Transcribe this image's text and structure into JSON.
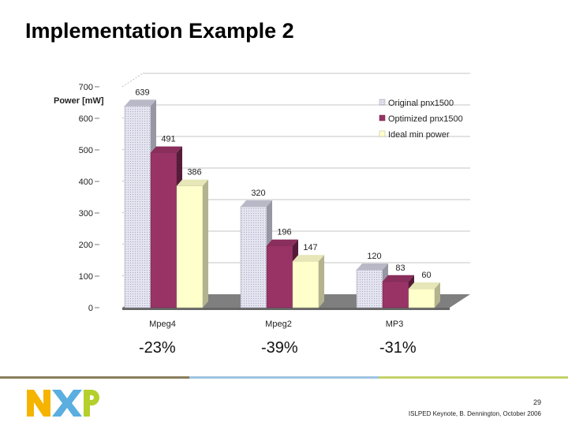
{
  "slide": {
    "title": "Implementation Example 2",
    "page_number": "29",
    "footer": "ISLPED Keynote, B. Dennington, October 2006"
  },
  "reductions": [
    "-23%",
    "-39%",
    "-31%"
  ],
  "logo": {
    "text": "NXP",
    "colors": {
      "n": "#f5b400",
      "x": "#5aaee0",
      "p": "#b5cf2c"
    }
  },
  "footer_colors": [
    "#8a7d5c",
    "#7fb3d9",
    "#b8c94a"
  ],
  "chart_data": {
    "type": "bar",
    "title": "",
    "xlabel": "",
    "ylabel": "Power [mW]",
    "ylim": [
      0,
      700
    ],
    "yticks": [
      "0",
      "100",
      "200",
      "300",
      "400",
      "500",
      "600",
      "700"
    ],
    "categories": [
      "Mpeg4",
      "Mpeg2",
      "MP3"
    ],
    "series": [
      {
        "name": "Original pnx1500",
        "values": [
          639,
          320,
          120
        ],
        "color": "#d8d8ea",
        "data_labels": [
          "639",
          "320",
          "120"
        ]
      },
      {
        "name": "Optimized pnx1500",
        "values": [
          491,
          196,
          83
        ],
        "color": "#993366",
        "data_labels": [
          "491",
          "196",
          "83"
        ]
      },
      {
        "name": "Ideal min power",
        "values": [
          386,
          147,
          60
        ],
        "color": "#ffffcc",
        "data_labels": [
          "386",
          "147",
          "60"
        ]
      }
    ],
    "grid": true,
    "legend_position": "top-right",
    "style": "3d"
  }
}
